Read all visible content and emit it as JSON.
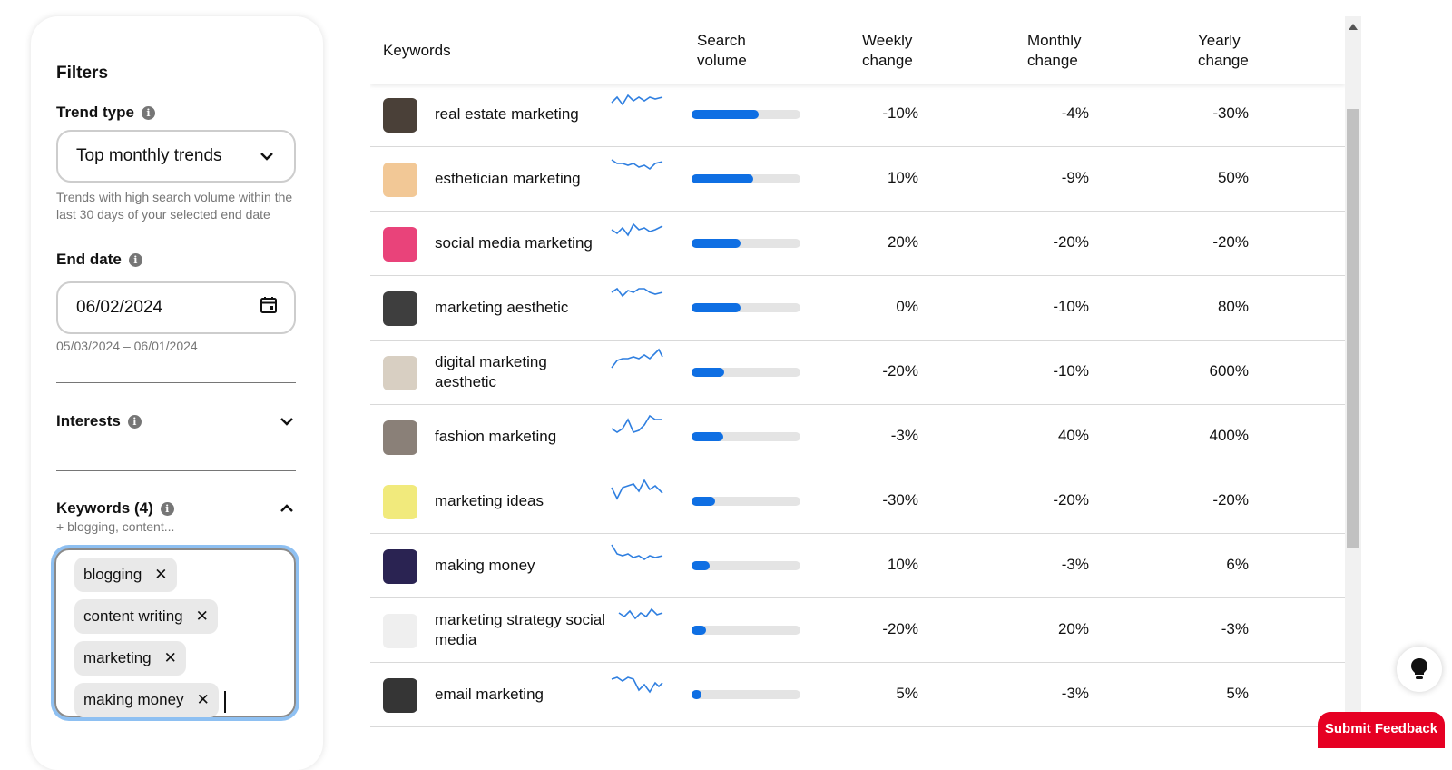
{
  "filters": {
    "title": "Filters",
    "trend_type": {
      "label": "Trend type",
      "selected": "Top monthly trends",
      "helper": "Trends with high search volume within the last 30 days of your selected end date"
    },
    "end_date": {
      "label": "End date",
      "value": "06/02/2024",
      "range": "05/03/2024 – 06/01/2024"
    },
    "interests": {
      "label": "Interests"
    },
    "keywords": {
      "label": "Keywords (4)",
      "hint": "+ blogging, content...",
      "chips": [
        "blogging",
        "content writing",
        "marketing",
        "making money"
      ]
    }
  },
  "table": {
    "headers": {
      "keywords": "Keywords",
      "search_volume": "Search volume",
      "weekly": "Weekly change",
      "monthly": "Monthly change",
      "yearly": "Yearly change"
    },
    "rows": [
      {
        "keyword": "real estate marketing",
        "volume": 0.62,
        "weekly": "-10%",
        "monthly": "-4%",
        "yearly": "-30%",
        "thumb": "#4a4038"
      },
      {
        "keyword": "esthetician marketing",
        "volume": 0.57,
        "weekly": "10%",
        "monthly": "-9%",
        "yearly": "50%",
        "thumb": "#f2c896"
      },
      {
        "keyword": "social media marketing",
        "volume": 0.45,
        "weekly": "20%",
        "monthly": "-20%",
        "yearly": "-20%",
        "thumb": "#e9437a"
      },
      {
        "keyword": "marketing aesthetic",
        "volume": 0.45,
        "weekly": "0%",
        "monthly": "-10%",
        "yearly": "80%",
        "thumb": "#3e3e3e"
      },
      {
        "keyword": "digital marketing aesthetic",
        "volume": 0.3,
        "weekly": "-20%",
        "monthly": "-10%",
        "yearly": "600%",
        "thumb": "#d8cfc2"
      },
      {
        "keyword": "fashion marketing",
        "volume": 0.29,
        "weekly": "-3%",
        "monthly": "40%",
        "yearly": "400%",
        "thumb": "#8a8078"
      },
      {
        "keyword": "marketing ideas",
        "volume": 0.22,
        "weekly": "-30%",
        "monthly": "-20%",
        "yearly": "-20%",
        "thumb": "#f1ea7c"
      },
      {
        "keyword": "making money",
        "volume": 0.17,
        "weekly": "10%",
        "monthly": "-3%",
        "yearly": "6%",
        "thumb": "#2a2352"
      },
      {
        "keyword": "marketing strategy social media",
        "volume": 0.13,
        "weekly": "-20%",
        "monthly": "20%",
        "yearly": "-3%",
        "thumb": "#efefef"
      },
      {
        "keyword": "email marketing",
        "volume": 0.09,
        "weekly": "5%",
        "monthly": "-3%",
        "yearly": "5%",
        "thumb": "#353535"
      }
    ]
  },
  "feedback_button": "Submit Feedback",
  "colors": {
    "accent": "#0f6fe3",
    "brand": "#e60023",
    "spark": "#2f7fe0"
  }
}
